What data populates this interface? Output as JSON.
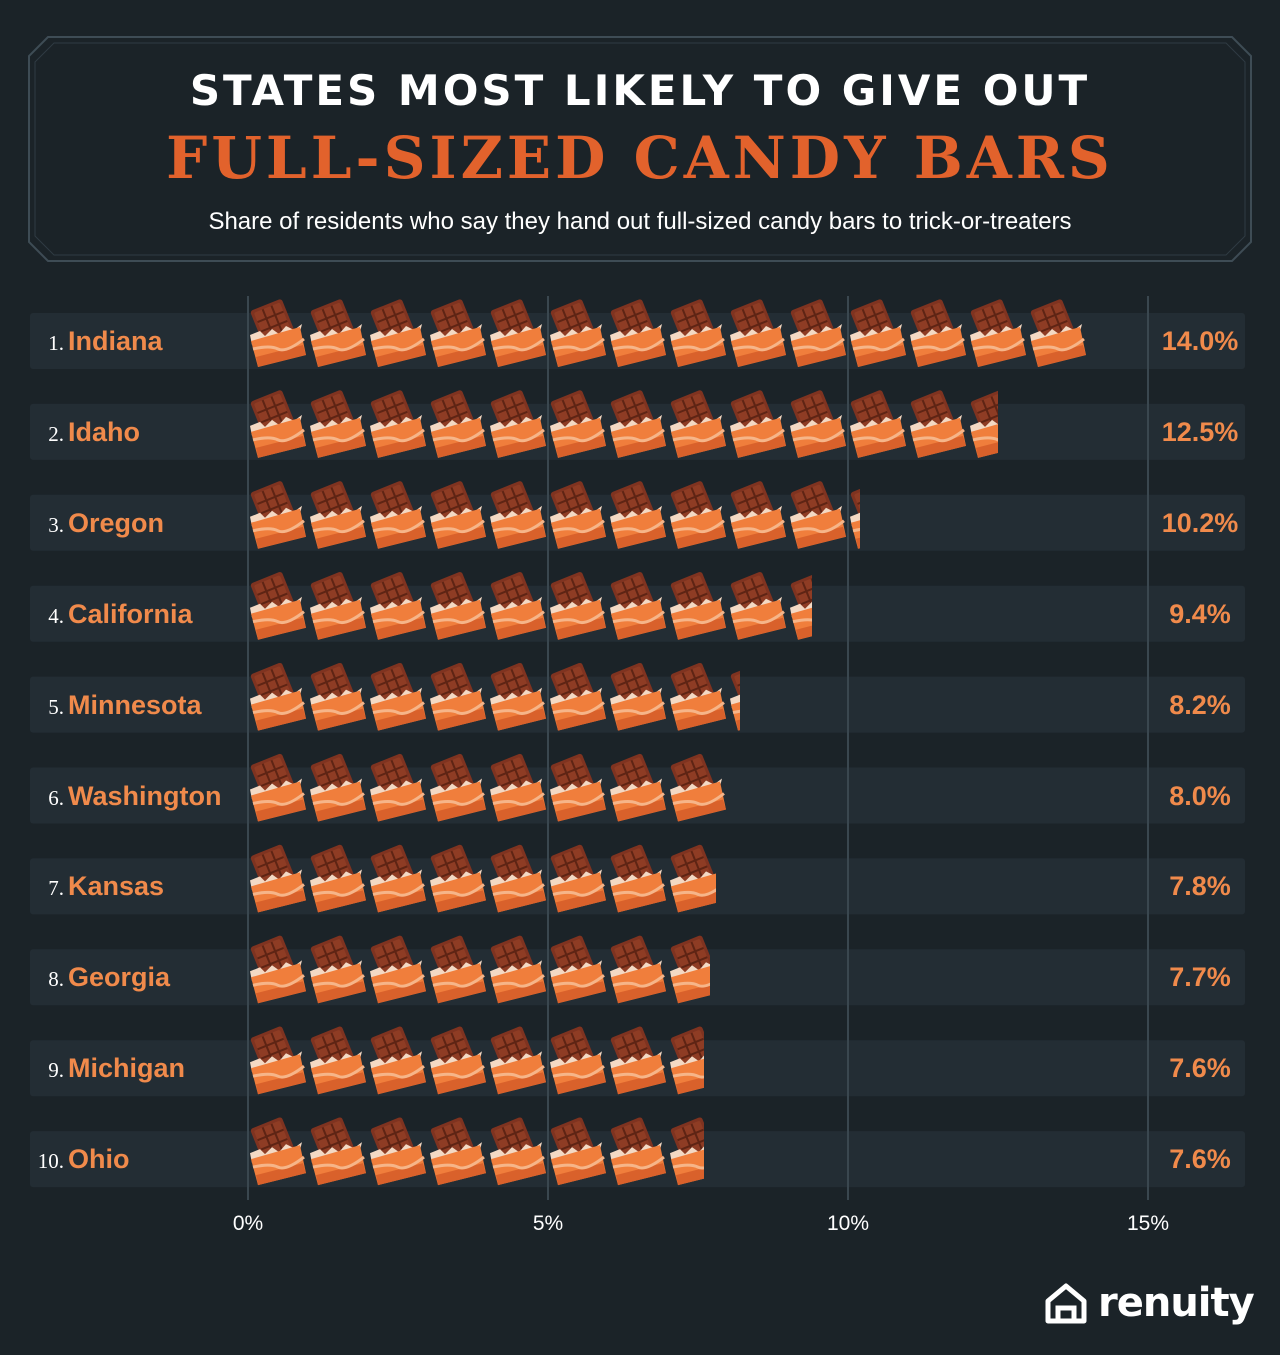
{
  "header": {
    "title_line1": "STATES MOST LIKELY TO GIVE OUT",
    "title_line2": "FULL-SIZED CANDY BARS",
    "subtitle": "Share of residents who say they hand out full-sized candy bars to trick-or-treaters"
  },
  "colors": {
    "background": "#1b2328",
    "row_band": "#232d34",
    "accent": "#e2622c",
    "label": "#f08a4b",
    "chocolate": "#8a3a22",
    "wrapper": "#f07e3c"
  },
  "icon": "chocolate-bar-icon",
  "chart_data": {
    "type": "bar",
    "orientation": "horizontal",
    "title": "STATES MOST LIKELY TO GIVE OUT FULL-SIZED CANDY BARS",
    "subtitle": "Share of residents who say they hand out full-sized candy bars to trick-or-treaters",
    "unit": "%",
    "xlim": [
      0,
      15
    ],
    "ticks": [
      0,
      5,
      10,
      15
    ],
    "tick_labels": [
      "0%",
      "5%",
      "10%",
      "15%"
    ],
    "grid": true,
    "one_icon_equals": 1,
    "rows": [
      {
        "rank": "1.",
        "state": "Indiana",
        "value": 14.0,
        "label": "14.0%"
      },
      {
        "rank": "2.",
        "state": "Idaho",
        "value": 12.5,
        "label": "12.5%"
      },
      {
        "rank": "3.",
        "state": "Oregon",
        "value": 10.2,
        "label": "10.2%"
      },
      {
        "rank": "4.",
        "state": "California",
        "value": 9.4,
        "label": "9.4%"
      },
      {
        "rank": "5.",
        "state": "Minnesota",
        "value": 8.2,
        "label": "8.2%"
      },
      {
        "rank": "6.",
        "state": "Washington",
        "value": 8.0,
        "label": "8.0%"
      },
      {
        "rank": "7.",
        "state": "Kansas",
        "value": 7.8,
        "label": "7.8%"
      },
      {
        "rank": "8.",
        "state": "Georgia",
        "value": 7.7,
        "label": "7.7%"
      },
      {
        "rank": "9.",
        "state": "Michigan",
        "value": 7.6,
        "label": "7.6%"
      },
      {
        "rank": "10.",
        "state": "Ohio",
        "value": 7.6,
        "label": "7.6%"
      }
    ]
  },
  "brand": {
    "name": "renuity",
    "logo_icon": "house-icon"
  }
}
